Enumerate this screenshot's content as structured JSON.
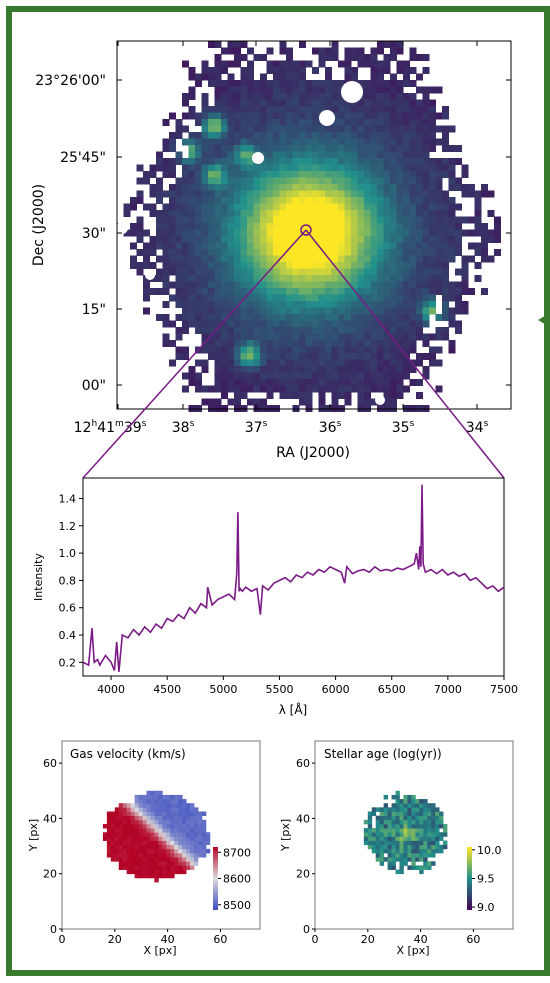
{
  "sky_image": {
    "xlabel": "RA (J2000)",
    "ylabel": "Dec (J2000)",
    "x_ticks": [
      {
        "label": "12ʰ41ᵐ39ˢ",
        "pre": "12",
        "sup1": "h",
        "mid": "41",
        "sup2": "m",
        "mid2": "39",
        "sup3": "s"
      },
      {
        "label": "38ˢ",
        "main": "38",
        "sup": "s"
      },
      {
        "label": "37ˢ",
        "main": "37",
        "sup": "s"
      },
      {
        "label": "36ˢ",
        "main": "36",
        "sup": "s"
      },
      {
        "label": "35ˢ",
        "main": "35",
        "sup": "s"
      },
      {
        "label": "34ˢ",
        "main": "34",
        "sup": "s"
      }
    ],
    "y_ticks": [
      "23°26'00\"",
      "25'45\"",
      "30\"",
      "15\"",
      "00\""
    ],
    "colormap": "viridis",
    "colors": {
      "low": "#440154",
      "mid": "#21918c",
      "high": "#fde725"
    }
  },
  "chart_data": [
    {
      "type": "line",
      "xlabel": "λ [Å]",
      "ylabel": "Intensity",
      "xlim": [
        3750,
        7500
      ],
      "ylim": [
        0.1,
        1.55
      ],
      "xticks": [
        4000,
        4500,
        5000,
        5500,
        6000,
        6500,
        7000,
        7500
      ],
      "yticks": [
        0.2,
        0.4,
        0.6,
        0.8,
        1.0,
        1.2,
        1.4
      ],
      "xtick_labels": [
        "4000",
        "4500",
        "5000",
        "5500",
        "6000",
        "6500",
        "7000",
        "7500"
      ],
      "ytick_labels": [
        "0.2",
        "0.4",
        "0.6",
        "0.8",
        "1.0",
        "1.2",
        "1.4"
      ],
      "color": "#7b1a86",
      "x": [
        3750,
        3800,
        3830,
        3850,
        3880,
        3900,
        3950,
        4000,
        4030,
        4050,
        4070,
        4100,
        4150,
        4200,
        4250,
        4300,
        4350,
        4400,
        4450,
        4500,
        4550,
        4600,
        4650,
        4700,
        4750,
        4800,
        4850,
        4861,
        4900,
        4950,
        5000,
        5050,
        5100,
        5120,
        5130,
        5140,
        5150,
        5170,
        5200,
        5250,
        5300,
        5330,
        5350,
        5400,
        5450,
        5500,
        5550,
        5600,
        5650,
        5700,
        5750,
        5800,
        5850,
        5900,
        5950,
        6000,
        6050,
        6080,
        6100,
        6150,
        6200,
        6250,
        6300,
        6350,
        6400,
        6450,
        6500,
        6550,
        6600,
        6650,
        6700,
        6720,
        6740,
        6750,
        6760,
        6770,
        6780,
        6800,
        6850,
        6900,
        6950,
        7000,
        7050,
        7100,
        7150,
        7200,
        7250,
        7300,
        7350,
        7400,
        7450,
        7500
      ],
      "y": [
        0.2,
        0.18,
        0.45,
        0.2,
        0.22,
        0.18,
        0.25,
        0.2,
        0.14,
        0.35,
        0.13,
        0.4,
        0.38,
        0.44,
        0.4,
        0.46,
        0.42,
        0.48,
        0.45,
        0.52,
        0.5,
        0.55,
        0.52,
        0.6,
        0.56,
        0.63,
        0.6,
        0.75,
        0.62,
        0.66,
        0.68,
        0.7,
        0.66,
        0.85,
        1.3,
        0.72,
        0.74,
        0.72,
        0.75,
        0.72,
        0.74,
        0.55,
        0.76,
        0.73,
        0.78,
        0.8,
        0.82,
        0.79,
        0.84,
        0.82,
        0.86,
        0.84,
        0.88,
        0.86,
        0.9,
        0.88,
        0.86,
        0.78,
        0.9,
        0.85,
        0.87,
        0.88,
        0.86,
        0.9,
        0.87,
        0.88,
        0.87,
        0.89,
        0.88,
        0.9,
        0.92,
        1.0,
        0.88,
        1.05,
        0.9,
        1.5,
        0.92,
        0.86,
        0.88,
        0.85,
        0.88,
        0.84,
        0.86,
        0.83,
        0.85,
        0.8,
        0.82,
        0.78,
        0.74,
        0.76,
        0.72,
        0.75
      ]
    },
    {
      "type": "heatmap",
      "title": "Gas velocity (km/s)",
      "xlabel": "X [px]",
      "ylabel": "Y [px]",
      "xlim": [
        0,
        75
      ],
      "ylim": [
        0,
        68
      ],
      "xticks": [
        0,
        20,
        40,
        60
      ],
      "yticks": [
        0,
        20,
        40,
        60
      ],
      "colorbar": {
        "min": 8480,
        "max": 8720,
        "ticks": [
          "8700",
          "8600",
          "8500"
        ]
      },
      "colors": {
        "low": "#3b4cc0",
        "mid": "#dddddd",
        "high": "#b40426"
      }
    },
    {
      "type": "heatmap",
      "title": "Stellar age (log(yr))",
      "xlabel": "X [px]",
      "ylabel": "Y [px]",
      "xlim": [
        0,
        75
      ],
      "ylim": [
        0,
        68
      ],
      "xticks": [
        0,
        20,
        40,
        60
      ],
      "yticks": [
        0,
        20,
        40,
        60
      ],
      "colorbar": {
        "min": 8.95,
        "max": 10.05,
        "ticks": [
          "10.0",
          "9.5",
          "9.0"
        ]
      },
      "colors": {
        "low": "#440154",
        "mid": "#21918c",
        "high": "#fde725"
      }
    }
  ]
}
